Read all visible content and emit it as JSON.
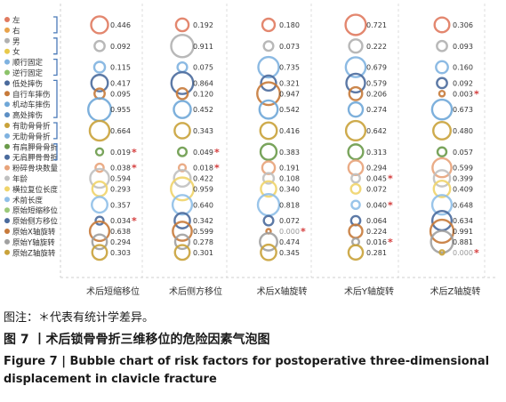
{
  "chart_data": {
    "type": "bubble",
    "columns": [
      "术后短缩移位",
      "术后侧方移位",
      "术后X轴旋转",
      "术后Y轴旋转",
      "术后Z轴旋转"
    ],
    "significance_marker": "*",
    "rows": [
      {
        "label": "左",
        "color": "#e07a5f",
        "values": [
          0.446,
          0.192,
          0.18,
          0.721,
          0.306
        ],
        "sig": [
          false,
          false,
          false,
          false,
          false
        ]
      },
      {
        "label": "右",
        "color": "#e8a34b",
        "values": null,
        "sig": null
      },
      {
        "label": "男",
        "color": "#b0b0b0",
        "values": [
          0.092,
          0.911,
          0.073,
          0.222,
          0.093
        ],
        "sig": [
          false,
          false,
          false,
          false,
          false
        ]
      },
      {
        "label": "女",
        "color": "#e8c94a",
        "values": null,
        "sig": null
      },
      {
        "label": "顺行固定",
        "color": "#7fb2e0",
        "values": [
          0.115,
          0.075,
          0.735,
          0.679,
          0.16
        ],
        "sig": [
          false,
          false,
          false,
          false,
          false
        ]
      },
      {
        "label": "逆行固定",
        "color": "#8cc36a",
        "values": null,
        "sig": null
      },
      {
        "label": "低处摔伤",
        "color": "#4a6a9c",
        "values": [
          0.417,
          0.864,
          0.321,
          0.579,
          0.092
        ],
        "sig": [
          false,
          false,
          false,
          false,
          false
        ]
      },
      {
        "label": "自行车摔伤",
        "color": "#c77a3a",
        "values": [
          0.095,
          0.12,
          0.947,
          0.206,
          0.003
        ],
        "sig": [
          false,
          false,
          false,
          false,
          true
        ]
      },
      {
        "label": "机动车摔伤",
        "color": "#6fa7d8",
        "values": [
          0.955,
          0.452,
          0.542,
          0.274,
          0.673
        ],
        "sig": [
          false,
          false,
          false,
          false,
          false
        ]
      },
      {
        "label": "高处摔伤",
        "color": "#5c8fc4",
        "values": null,
        "sig": null
      },
      {
        "label": "有肋骨骨折",
        "color": "#c9a23a",
        "values": [
          0.664,
          0.343,
          0.416,
          0.642,
          0.48
        ],
        "sig": [
          false,
          false,
          false,
          false,
          false
        ]
      },
      {
        "label": "无肋骨骨折",
        "color": "#7fb2e0",
        "values": null,
        "sig": null
      },
      {
        "label": "有肩胛骨骨折",
        "color": "#6a9a4a",
        "values": [
          0.019,
          0.049,
          0.383,
          0.313,
          0.057
        ],
        "sig": [
          true,
          true,
          false,
          false,
          false
        ]
      },
      {
        "label": "无肩胛骨骨折",
        "color": "#4a6a9c",
        "values": null,
        "sig": null
      },
      {
        "label": "粉碎骨块数量",
        "color": "#e8a37a",
        "values": [
          0.038,
          0.018,
          0.191,
          0.294,
          0.599
        ],
        "sig": [
          true,
          true,
          false,
          false,
          false
        ]
      },
      {
        "label": "年龄",
        "color": "#c0c0c0",
        "values": [
          0.594,
          0.422,
          0.108,
          0.045,
          0.399
        ],
        "sig": [
          false,
          false,
          false,
          true,
          false
        ]
      },
      {
        "label": "横拉复位长度",
        "color": "#f0d46a",
        "values": [
          0.293,
          0.959,
          0.34,
          0.072,
          0.409
        ],
        "sig": [
          false,
          false,
          false,
          false,
          false
        ]
      },
      {
        "label": "术前长度",
        "color": "#8fbfe8",
        "values": [
          0.357,
          0.64,
          0.818,
          0.04,
          0.648
        ],
        "sig": [
          false,
          false,
          false,
          true,
          false
        ]
      },
      {
        "label": "原始短缩移位",
        "color": "#9cc97a",
        "values": null,
        "sig": null
      },
      {
        "label": "原始侧方移位",
        "color": "#4a6a9c",
        "values": [
          0.034,
          0.342,
          0.072,
          0.064,
          0.634
        ],
        "sig": [
          true,
          false,
          false,
          false,
          false
        ]
      },
      {
        "label": "原始X轴旋转",
        "color": "#c77a3a",
        "values": [
          0.638,
          0.599,
          0.0,
          0.224,
          0.991
        ],
        "sig": [
          false,
          false,
          true,
          false,
          false
        ]
      },
      {
        "label": "原始Y轴旋转",
        "color": "#a0a0a0",
        "values": [
          0.294,
          0.278,
          0.474,
          0.016,
          0.881
        ],
        "sig": [
          false,
          false,
          false,
          true,
          false
        ]
      },
      {
        "label": "原始Z轴旋转",
        "color": "#c9a23a",
        "values": [
          0.303,
          0.301,
          0.345,
          0.281,
          0.0
        ],
        "sig": [
          false,
          false,
          false,
          false,
          true
        ]
      }
    ]
  },
  "caption": {
    "note": "图注：＊代表有统计学差异。",
    "title_cn": "图 7 丨术后锁骨骨折三维移位的危险因素气泡图",
    "title_en": "Figure 7  |  Bubble chart of risk factors for postoperative three-dimensional displacement in clavicle fracture"
  }
}
